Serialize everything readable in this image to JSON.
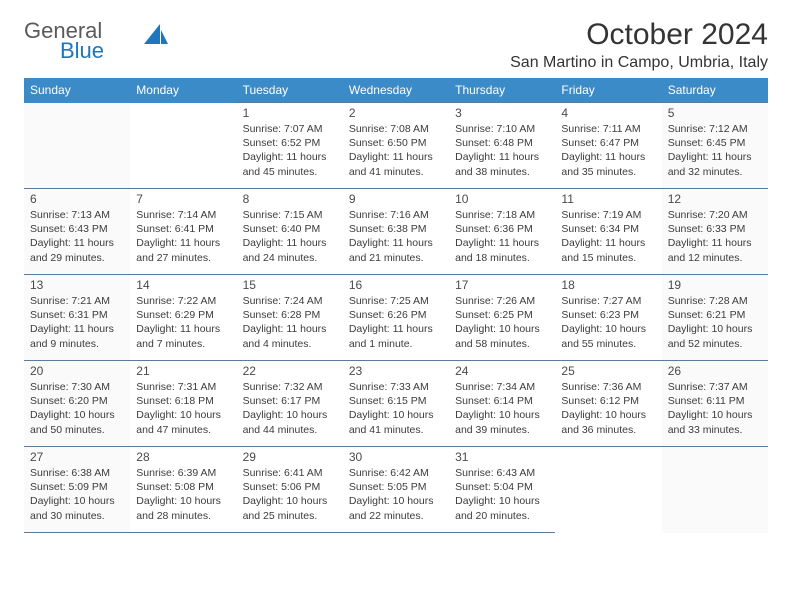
{
  "logo": {
    "line1": "General",
    "line2": "Blue"
  },
  "title": "October 2024",
  "location": "San Martino in Campo, Umbria, Italy",
  "colors": {
    "header_bg": "#3b8bc9",
    "header_text": "#ffffff",
    "border": "#5a7a9e",
    "logo_gray": "#5a5a5a",
    "logo_blue": "#2175bd"
  },
  "day_headers": [
    "Sunday",
    "Monday",
    "Tuesday",
    "Wednesday",
    "Thursday",
    "Friday",
    "Saturday"
  ],
  "weeks": [
    [
      null,
      null,
      {
        "n": "1",
        "sr": "7:07 AM",
        "ss": "6:52 PM",
        "dl": "11 hours and 45 minutes."
      },
      {
        "n": "2",
        "sr": "7:08 AM",
        "ss": "6:50 PM",
        "dl": "11 hours and 41 minutes."
      },
      {
        "n": "3",
        "sr": "7:10 AM",
        "ss": "6:48 PM",
        "dl": "11 hours and 38 minutes."
      },
      {
        "n": "4",
        "sr": "7:11 AM",
        "ss": "6:47 PM",
        "dl": "11 hours and 35 minutes."
      },
      {
        "n": "5",
        "sr": "7:12 AM",
        "ss": "6:45 PM",
        "dl": "11 hours and 32 minutes."
      }
    ],
    [
      {
        "n": "6",
        "sr": "7:13 AM",
        "ss": "6:43 PM",
        "dl": "11 hours and 29 minutes."
      },
      {
        "n": "7",
        "sr": "7:14 AM",
        "ss": "6:41 PM",
        "dl": "11 hours and 27 minutes."
      },
      {
        "n": "8",
        "sr": "7:15 AM",
        "ss": "6:40 PM",
        "dl": "11 hours and 24 minutes."
      },
      {
        "n": "9",
        "sr": "7:16 AM",
        "ss": "6:38 PM",
        "dl": "11 hours and 21 minutes."
      },
      {
        "n": "10",
        "sr": "7:18 AM",
        "ss": "6:36 PM",
        "dl": "11 hours and 18 minutes."
      },
      {
        "n": "11",
        "sr": "7:19 AM",
        "ss": "6:34 PM",
        "dl": "11 hours and 15 minutes."
      },
      {
        "n": "12",
        "sr": "7:20 AM",
        "ss": "6:33 PM",
        "dl": "11 hours and 12 minutes."
      }
    ],
    [
      {
        "n": "13",
        "sr": "7:21 AM",
        "ss": "6:31 PM",
        "dl": "11 hours and 9 minutes."
      },
      {
        "n": "14",
        "sr": "7:22 AM",
        "ss": "6:29 PM",
        "dl": "11 hours and 7 minutes."
      },
      {
        "n": "15",
        "sr": "7:24 AM",
        "ss": "6:28 PM",
        "dl": "11 hours and 4 minutes."
      },
      {
        "n": "16",
        "sr": "7:25 AM",
        "ss": "6:26 PM",
        "dl": "11 hours and 1 minute."
      },
      {
        "n": "17",
        "sr": "7:26 AM",
        "ss": "6:25 PM",
        "dl": "10 hours and 58 minutes."
      },
      {
        "n": "18",
        "sr": "7:27 AM",
        "ss": "6:23 PM",
        "dl": "10 hours and 55 minutes."
      },
      {
        "n": "19",
        "sr": "7:28 AM",
        "ss": "6:21 PM",
        "dl": "10 hours and 52 minutes."
      }
    ],
    [
      {
        "n": "20",
        "sr": "7:30 AM",
        "ss": "6:20 PM",
        "dl": "10 hours and 50 minutes."
      },
      {
        "n": "21",
        "sr": "7:31 AM",
        "ss": "6:18 PM",
        "dl": "10 hours and 47 minutes."
      },
      {
        "n": "22",
        "sr": "7:32 AM",
        "ss": "6:17 PM",
        "dl": "10 hours and 44 minutes."
      },
      {
        "n": "23",
        "sr": "7:33 AM",
        "ss": "6:15 PM",
        "dl": "10 hours and 41 minutes."
      },
      {
        "n": "24",
        "sr": "7:34 AM",
        "ss": "6:14 PM",
        "dl": "10 hours and 39 minutes."
      },
      {
        "n": "25",
        "sr": "7:36 AM",
        "ss": "6:12 PM",
        "dl": "10 hours and 36 minutes."
      },
      {
        "n": "26",
        "sr": "7:37 AM",
        "ss": "6:11 PM",
        "dl": "10 hours and 33 minutes."
      }
    ],
    [
      {
        "n": "27",
        "sr": "6:38 AM",
        "ss": "5:09 PM",
        "dl": "10 hours and 30 minutes."
      },
      {
        "n": "28",
        "sr": "6:39 AM",
        "ss": "5:08 PM",
        "dl": "10 hours and 28 minutes."
      },
      {
        "n": "29",
        "sr": "6:41 AM",
        "ss": "5:06 PM",
        "dl": "10 hours and 25 minutes."
      },
      {
        "n": "30",
        "sr": "6:42 AM",
        "ss": "5:05 PM",
        "dl": "10 hours and 22 minutes."
      },
      {
        "n": "31",
        "sr": "6:43 AM",
        "ss": "5:04 PM",
        "dl": "10 hours and 20 minutes."
      },
      null,
      null
    ]
  ],
  "labels": {
    "sunrise": "Sunrise: ",
    "sunset": "Sunset: ",
    "daylight": "Daylight: "
  }
}
